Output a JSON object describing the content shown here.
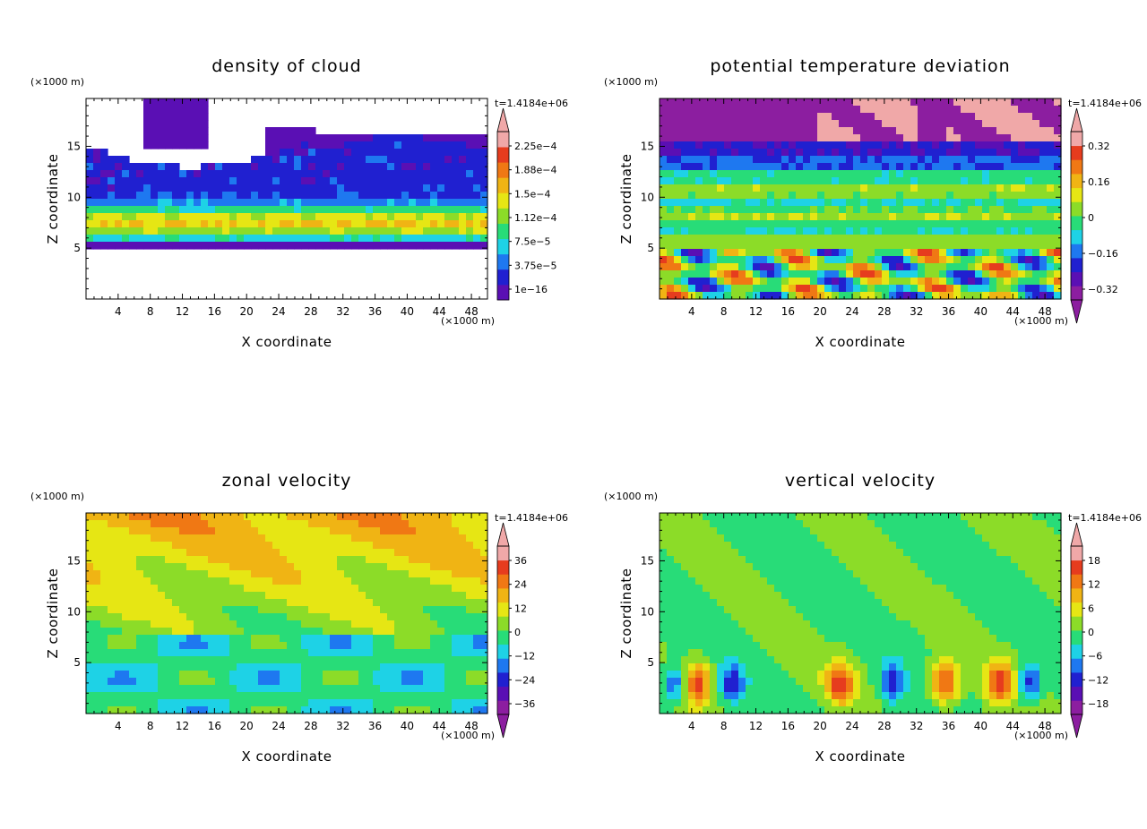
{
  "figure": {
    "panels": [
      {
        "title": "density of cloud",
        "x_label": "X coordinate",
        "z_label": "Z coordinate",
        "x_unit": "(×1000 m)",
        "z_unit": "(×1000 m)",
        "time_label": "t=1.4184e+06",
        "colorbar_labels": [
          "2.25e−4",
          "1.88e−4",
          "1.5e−4",
          "1.12e−4",
          "7.5e−5",
          "3.75e−5",
          "1e−16"
        ]
      },
      {
        "title": "potential temperature deviation",
        "x_label": "X coordinate",
        "z_label": "Z coordinate",
        "x_unit": "(×1000 m)",
        "z_unit": "(×1000 m)",
        "time_label": "t=1.4184e+06",
        "colorbar_labels": [
          "0.32",
          "0.16",
          "0",
          "−0.16",
          "−0.32"
        ]
      },
      {
        "title": "zonal velocity",
        "x_label": "X coordinate",
        "z_label": "Z coordinate",
        "x_unit": "(×1000 m)",
        "z_unit": "(×1000 m)",
        "time_label": "t=1.4184e+06",
        "colorbar_labels": [
          "36",
          "24",
          "12",
          "0",
          "−12",
          "−24",
          "−36"
        ]
      },
      {
        "title": "vertical velocity",
        "x_label": "X coordinate",
        "z_label": "Z coordinate",
        "x_unit": "(×1000 m)",
        "z_unit": "(×1000 m)",
        "time_label": "t=1.4184e+06",
        "colorbar_labels": [
          "18",
          "12",
          "6",
          "0",
          "−6",
          "−12",
          "−18"
        ]
      }
    ]
  },
  "chart_data": [
    {
      "type": "heatmap",
      "title": "density of cloud",
      "xlabel": "X coordinate",
      "ylabel": "Z coordinate",
      "x_unit": "(×1000 m)",
      "y_unit": "(×1000 m)",
      "xlim": [
        0,
        50
      ],
      "ylim": [
        0,
        19.7
      ],
      "x_ticks": [
        4,
        8,
        12,
        16,
        20,
        24,
        28,
        32,
        36,
        40,
        44,
        48
      ],
      "y_ticks": [
        5,
        10,
        15
      ],
      "time": "t=1.4184e+06",
      "colorbar": {
        "levels": [
          1e-16,
          3.75e-05,
          7.5e-05,
          0.000112,
          0.00015,
          0.000188,
          0.000225
        ],
        "labels": [
          "2.25e−4",
          "1.88e−4",
          "1.5e−4",
          "1.12e−4",
          "7.5e−5",
          "3.75e−5",
          "1e−16"
        ],
        "colors": [
          "#5a0fb4",
          "#2020d0",
          "#1e78f0",
          "#1ed2e6",
          "#28dc78",
          "#8cdc28",
          "#e6e614",
          "#f0b414",
          "#f07814",
          "#e63c1e",
          "#f0a8a8"
        ]
      }
    },
    {
      "type": "heatmap",
      "title": "potential temperature deviation",
      "xlabel": "X coordinate",
      "ylabel": "Z coordinate",
      "x_unit": "(×1000 m)",
      "y_unit": "(×1000 m)",
      "xlim": [
        0,
        50
      ],
      "ylim": [
        0,
        19.7
      ],
      "x_ticks": [
        4,
        8,
        12,
        16,
        20,
        24,
        28,
        32,
        36,
        40,
        44,
        48
      ],
      "y_ticks": [
        5,
        10,
        15
      ],
      "time": "t=1.4184e+06",
      "colorbar": {
        "levels": [
          -0.32,
          -0.16,
          0,
          0.16,
          0.32
        ],
        "labels": [
          "0.32",
          "0.16",
          "0",
          "−0.16",
          "−0.32"
        ],
        "colors": [
          "#8c1ea0",
          "#5a0fb4",
          "#2020d0",
          "#1e78f0",
          "#1ed2e6",
          "#28dc78",
          "#8cdc28",
          "#e6e614",
          "#f0b414",
          "#f07814",
          "#e63c1e",
          "#f0a8a8"
        ]
      }
    },
    {
      "type": "heatmap",
      "title": "zonal velocity",
      "xlabel": "X coordinate",
      "ylabel": "Z coordinate",
      "x_unit": "(×1000 m)",
      "y_unit": "(×1000 m)",
      "xlim": [
        0,
        50
      ],
      "ylim": [
        0,
        19.7
      ],
      "x_ticks": [
        4,
        8,
        12,
        16,
        20,
        24,
        28,
        32,
        36,
        40,
        44,
        48
      ],
      "y_ticks": [
        5,
        10,
        15
      ],
      "time": "t=1.4184e+06",
      "colorbar": {
        "levels": [
          -36,
          -24,
          -12,
          0,
          12,
          24,
          36
        ],
        "labels": [
          "36",
          "24",
          "12",
          "0",
          "−12",
          "−24",
          "−36"
        ],
        "colors": [
          "#8c1ea0",
          "#5a0fb4",
          "#2020d0",
          "#1e78f0",
          "#1ed2e6",
          "#28dc78",
          "#8cdc28",
          "#e6e614",
          "#f0b414",
          "#f07814",
          "#e63c1e",
          "#f0a8a8"
        ]
      }
    },
    {
      "type": "heatmap",
      "title": "vertical velocity",
      "xlabel": "X coordinate",
      "ylabel": "Z coordinate",
      "x_unit": "(×1000 m)",
      "y_unit": "(×1000 m)",
      "xlim": [
        0,
        50
      ],
      "ylim": [
        0,
        19.7
      ],
      "x_ticks": [
        4,
        8,
        12,
        16,
        20,
        24,
        28,
        32,
        36,
        40,
        44,
        48
      ],
      "y_ticks": [
        5,
        10,
        15
      ],
      "time": "t=1.4184e+06",
      "colorbar": {
        "levels": [
          -18,
          -12,
          -6,
          0,
          6,
          12,
          18
        ],
        "labels": [
          "18",
          "12",
          "6",
          "0",
          "−6",
          "−12",
          "−18"
        ],
        "colors": [
          "#8c1ea0",
          "#5a0fb4",
          "#2020d0",
          "#1e78f0",
          "#1ed2e6",
          "#28dc78",
          "#8cdc28",
          "#e6e614",
          "#f0b414",
          "#f07814",
          "#e63c1e",
          "#f0a8a8"
        ]
      }
    }
  ]
}
